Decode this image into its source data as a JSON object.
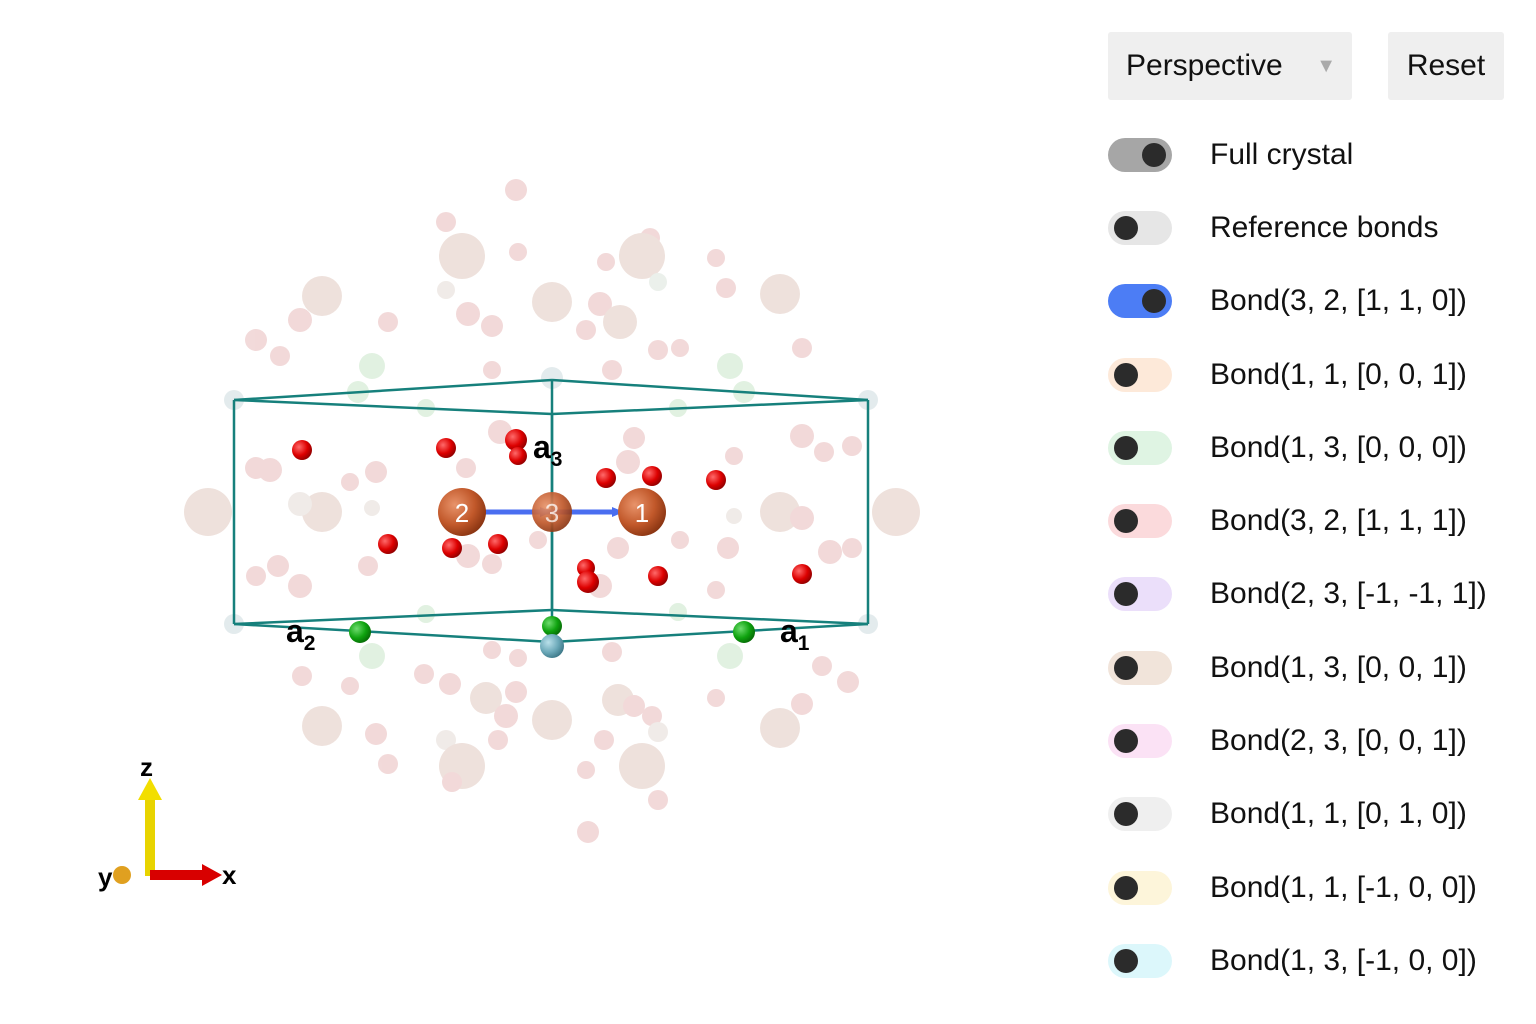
{
  "controls": {
    "projection_select": {
      "value": "Perspective"
    },
    "reset_label": "Reset"
  },
  "toggles": [
    {
      "label": "Full crystal",
      "on": true,
      "color": "#a6a6a6"
    },
    {
      "label": "Reference bonds",
      "on": false,
      "color": "#e6e6e6"
    },
    {
      "label": "Bond(3, 2, [1, 1, 0])",
      "on": true,
      "color": "#4c7df5"
    },
    {
      "label": "Bond(1, 1, [0, 0, 1])",
      "on": false,
      "color": "#fde9d9"
    },
    {
      "label": "Bond(1, 3, [0, 0, 0])",
      "on": false,
      "color": "#dff4e3"
    },
    {
      "label": "Bond(3, 2, [1, 1, 1])",
      "on": false,
      "color": "#fbdadc"
    },
    {
      "label": "Bond(2, 3, [-1, -1, 1])",
      "on": false,
      "color": "#ebdffa"
    },
    {
      "label": "Bond(1, 3, [0, 0, 1])",
      "on": false,
      "color": "#f1e4da"
    },
    {
      "label": "Bond(2, 3, [0, 0, 1])",
      "on": false,
      "color": "#fbe2f5"
    },
    {
      "label": "Bond(1, 1, [0, 1, 0])",
      "on": false,
      "color": "#efefef"
    },
    {
      "label": "Bond(1, 1, [-1, 0, 0])",
      "on": false,
      "color": "#fdf5da"
    },
    {
      "label": "Bond(1, 3, [-1, 0, 0])",
      "on": false,
      "color": "#dcf7fb"
    }
  ],
  "scene": {
    "lattice_labels": {
      "a1": "a",
      "a1_sub": "1",
      "a2": "a",
      "a2_sub": "2",
      "a3": "a",
      "a3_sub": "3"
    },
    "atom_labels": [
      "2",
      "3",
      "1"
    ],
    "axes": {
      "x": "x",
      "y": "y",
      "z": "z"
    },
    "colors": {
      "cell": "#16807c",
      "bond": "#4a6ef0",
      "cu_atom": "#c1582a",
      "o_atom": "#e00000",
      "green_atom": "#0fa30f",
      "ghost": "#f1d6d6"
    }
  }
}
